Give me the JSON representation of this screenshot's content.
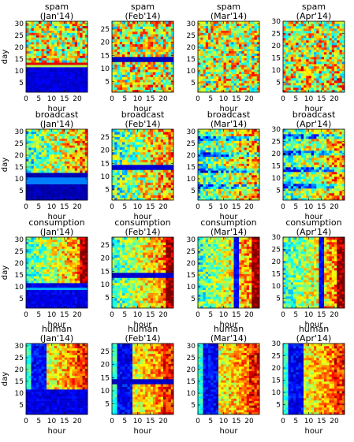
{
  "figure": {
    "colormap": "jet",
    "grid": false,
    "legend": "none"
  },
  "chart_data": [
    {
      "type": "heatmap",
      "title": "spam",
      "subtitle": "(Jan'14)",
      "xlabel": "hour",
      "ylabel": "day",
      "xlim": [
        0,
        24
      ],
      "ylim": [
        1,
        31
      ],
      "x_ticks": [
        0,
        5,
        10,
        15,
        20
      ],
      "y_ticks": [
        5,
        10,
        15,
        20,
        25,
        30
      ],
      "x_tick_labels": [
        "0",
        "5",
        "10",
        "15",
        "20"
      ],
      "y_tick_labels": [
        "5",
        "10",
        "15",
        "20",
        "25",
        "30"
      ],
      "rows": 31,
      "cols": 24
    },
    {
      "type": "heatmap",
      "title": "spam",
      "subtitle": "(Feb'14)",
      "xlabel": "hour",
      "ylabel": "",
      "xlim": [
        0,
        24
      ],
      "ylim": [
        1,
        28
      ],
      "x_ticks": [
        0,
        5,
        10,
        15,
        20
      ],
      "y_ticks": [
        5,
        10,
        15,
        20,
        25
      ],
      "x_tick_labels": [
        "0",
        "5",
        "10",
        "15",
        "20"
      ],
      "y_tick_labels": [
        "5",
        "10",
        "15",
        "20",
        "25"
      ],
      "rows": 28,
      "cols": 24
    },
    {
      "type": "heatmap",
      "title": "spam",
      "subtitle": "(Mar'14)",
      "xlabel": "hour",
      "ylabel": "",
      "xlim": [
        0,
        24
      ],
      "ylim": [
        1,
        31
      ],
      "x_ticks": [
        0,
        5,
        10,
        15,
        20
      ],
      "y_ticks": [
        5,
        10,
        15,
        20,
        25,
        30
      ],
      "x_tick_labels": [
        "0",
        "5",
        "10",
        "15",
        "20"
      ],
      "y_tick_labels": [
        "5",
        "10",
        "15",
        "20",
        "25",
        "30"
      ],
      "rows": 31,
      "cols": 24
    },
    {
      "type": "heatmap",
      "title": "spam",
      "subtitle": "(Apr'14)",
      "xlabel": "hour",
      "ylabel": "",
      "xlim": [
        0,
        24
      ],
      "ylim": [
        1,
        30
      ],
      "x_ticks": [
        0,
        5,
        10,
        15,
        20
      ],
      "y_ticks": [
        5,
        10,
        15,
        20,
        25,
        30
      ],
      "x_tick_labels": [
        "0",
        "5",
        "10",
        "15",
        "20"
      ],
      "y_tick_labels": [
        "5",
        "10",
        "15",
        "20",
        "25",
        "30"
      ],
      "rows": 30,
      "cols": 24
    },
    {
      "type": "heatmap",
      "title": "broadcast",
      "subtitle": "(Jan'14)",
      "xlabel": "hour",
      "ylabel": "day",
      "xlim": [
        0,
        24
      ],
      "ylim": [
        1,
        31
      ],
      "x_ticks": [
        0,
        5,
        10,
        15,
        20
      ],
      "y_ticks": [
        5,
        10,
        15,
        20,
        25,
        30
      ],
      "x_tick_labels": [
        "0",
        "5",
        "10",
        "15",
        "20"
      ],
      "y_tick_labels": [
        "5",
        "10",
        "15",
        "20",
        "25",
        "30"
      ],
      "rows": 31,
      "cols": 24
    },
    {
      "type": "heatmap",
      "title": "broadcast",
      "subtitle": "(Feb'14)",
      "xlabel": "hour",
      "ylabel": "",
      "xlim": [
        0,
        24
      ],
      "ylim": [
        1,
        28
      ],
      "x_ticks": [
        0,
        5,
        10,
        15,
        20
      ],
      "y_ticks": [
        5,
        10,
        15,
        20,
        25
      ],
      "x_tick_labels": [
        "0",
        "5",
        "10",
        "15",
        "20"
      ],
      "y_tick_labels": [
        "5",
        "10",
        "15",
        "20",
        "25"
      ],
      "rows": 28,
      "cols": 24
    },
    {
      "type": "heatmap",
      "title": "broadcast",
      "subtitle": "(Mar'14)",
      "xlabel": "hour",
      "ylabel": "",
      "xlim": [
        0,
        24
      ],
      "ylim": [
        1,
        31
      ],
      "x_ticks": [
        0,
        5,
        10,
        15,
        20
      ],
      "y_ticks": [
        5,
        10,
        15,
        20,
        25,
        30
      ],
      "x_tick_labels": [
        "0",
        "5",
        "10",
        "15",
        "20"
      ],
      "y_tick_labels": [
        "5",
        "10",
        "15",
        "20",
        "25",
        "30"
      ],
      "rows": 31,
      "cols": 24
    },
    {
      "type": "heatmap",
      "title": "broadcast",
      "subtitle": "(Apr'14)",
      "xlabel": "hour",
      "ylabel": "",
      "xlim": [
        0,
        24
      ],
      "ylim": [
        1,
        30
      ],
      "x_ticks": [
        0,
        5,
        10,
        15,
        20
      ],
      "y_ticks": [
        5,
        10,
        15,
        20,
        25,
        30
      ],
      "x_tick_labels": [
        "0",
        "5",
        "10",
        "15",
        "20"
      ],
      "y_tick_labels": [
        "5",
        "10",
        "15",
        "20",
        "25",
        "30"
      ],
      "rows": 30,
      "cols": 24
    },
    {
      "type": "heatmap",
      "title": "consumption",
      "subtitle": "(Jan'14)",
      "xlabel": "hour",
      "ylabel": "day",
      "xlim": [
        0,
        24
      ],
      "ylim": [
        1,
        31
      ],
      "x_ticks": [
        0,
        5,
        10,
        15,
        20
      ],
      "y_ticks": [
        5,
        10,
        15,
        20,
        25,
        30
      ],
      "x_tick_labels": [
        "0",
        "5",
        "10",
        "15",
        "20"
      ],
      "y_tick_labels": [
        "5",
        "10",
        "15",
        "20",
        "25",
        "30"
      ],
      "rows": 31,
      "cols": 24
    },
    {
      "type": "heatmap",
      "title": "consumption",
      "subtitle": "(Feb'14)",
      "xlabel": "hour",
      "ylabel": "",
      "xlim": [
        0,
        24
      ],
      "ylim": [
        1,
        28
      ],
      "x_ticks": [
        0,
        5,
        10,
        15,
        20
      ],
      "y_ticks": [
        5,
        10,
        15,
        20,
        25
      ],
      "x_tick_labels": [
        "0",
        "5",
        "10",
        "15",
        "20"
      ],
      "y_tick_labels": [
        "5",
        "10",
        "15",
        "20",
        "25"
      ],
      "rows": 28,
      "cols": 24
    },
    {
      "type": "heatmap",
      "title": "consumption",
      "subtitle": "(Mar'14)",
      "xlabel": "hour",
      "ylabel": "",
      "xlim": [
        0,
        24
      ],
      "ylim": [
        1,
        31
      ],
      "x_ticks": [
        0,
        5,
        10,
        15,
        20
      ],
      "y_ticks": [
        5,
        10,
        15,
        20,
        25,
        30
      ],
      "x_tick_labels": [
        "0",
        "5",
        "10",
        "15",
        "20"
      ],
      "y_tick_labels": [
        "5",
        "10",
        "15",
        "20",
        "25",
        "30"
      ],
      "rows": 31,
      "cols": 24
    },
    {
      "type": "heatmap",
      "title": "consumption",
      "subtitle": "(Apr'14)",
      "xlabel": "hour",
      "ylabel": "",
      "xlim": [
        0,
        24
      ],
      "ylim": [
        1,
        30
      ],
      "x_ticks": [
        0,
        5,
        10,
        15,
        20
      ],
      "y_ticks": [
        5,
        10,
        15,
        20,
        25,
        30
      ],
      "x_tick_labels": [
        "0",
        "5",
        "10",
        "15",
        "20"
      ],
      "y_tick_labels": [
        "5",
        "10",
        "15",
        "20",
        "25",
        "30"
      ],
      "rows": 30,
      "cols": 24
    },
    {
      "type": "heatmap",
      "title": "human",
      "subtitle": "(Jan'14)",
      "xlabel": "hour",
      "ylabel": "day",
      "xlim": [
        0,
        24
      ],
      "ylim": [
        1,
        31
      ],
      "x_ticks": [
        0,
        5,
        10,
        15,
        20
      ],
      "y_ticks": [
        5,
        10,
        15,
        20,
        25,
        30
      ],
      "x_tick_labels": [
        "0",
        "5",
        "10",
        "15",
        "20"
      ],
      "y_tick_labels": [
        "5",
        "10",
        "15",
        "20",
        "25",
        "30"
      ],
      "rows": 31,
      "cols": 24
    },
    {
      "type": "heatmap",
      "title": "human",
      "subtitle": "(Feb'14)",
      "xlabel": "hour",
      "ylabel": "",
      "xlim": [
        0,
        24
      ],
      "ylim": [
        1,
        28
      ],
      "x_ticks": [
        0,
        5,
        10,
        15,
        20
      ],
      "y_ticks": [
        5,
        10,
        15,
        20,
        25
      ],
      "x_tick_labels": [
        "0",
        "5",
        "10",
        "15",
        "20"
      ],
      "y_tick_labels": [
        "5",
        "10",
        "15",
        "20",
        "25"
      ],
      "rows": 28,
      "cols": 24
    },
    {
      "type": "heatmap",
      "title": "human",
      "subtitle": "(Mar'14)",
      "xlabel": "hour",
      "ylabel": "",
      "xlim": [
        0,
        24
      ],
      "ylim": [
        1,
        31
      ],
      "x_ticks": [
        0,
        5,
        10,
        15,
        20
      ],
      "y_ticks": [
        5,
        10,
        15,
        20,
        25,
        30
      ],
      "x_tick_labels": [
        "0",
        "5",
        "10",
        "15",
        "20"
      ],
      "y_tick_labels": [
        "5",
        "10",
        "15",
        "20",
        "25",
        "30"
      ],
      "rows": 31,
      "cols": 24
    },
    {
      "type": "heatmap",
      "title": "human",
      "subtitle": "(Apr'14)",
      "xlabel": "hour",
      "ylabel": "",
      "xlim": [
        0,
        24
      ],
      "ylim": [
        1,
        30
      ],
      "x_ticks": [
        0,
        5,
        10,
        15,
        20
      ],
      "y_ticks": [
        5,
        10,
        15,
        20,
        25,
        30
      ],
      "x_tick_labels": [
        "0",
        "5",
        "10",
        "15",
        "20"
      ],
      "y_tick_labels": [
        "5",
        "10",
        "15",
        "20",
        "25",
        "30"
      ],
      "rows": 30,
      "cols": 24
    }
  ]
}
